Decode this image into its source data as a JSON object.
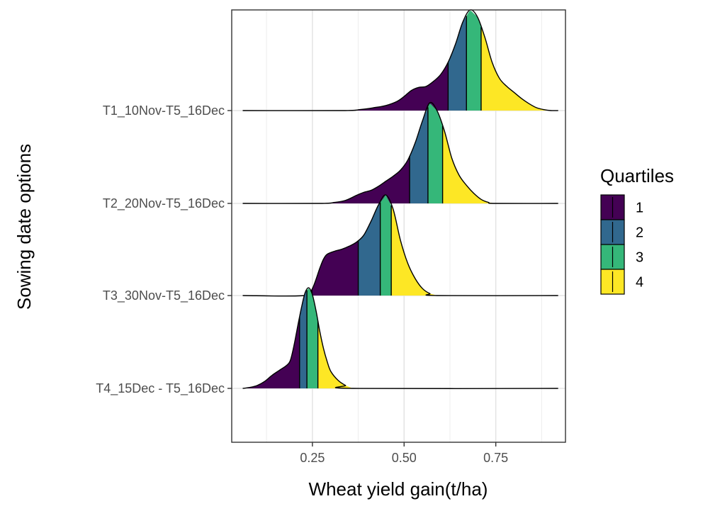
{
  "chart_data": {
    "type": "ridgeline",
    "title": "",
    "xlabel": "Wheat yield gain(t/ha)",
    "ylabel": "Sowing date options",
    "xlim": [
      0.03,
      0.94
    ],
    "x_ticks": [
      0.25,
      0.5,
      0.75
    ],
    "x_tick_labels": [
      "0.25",
      "0.50",
      "0.75"
    ],
    "grid": true,
    "legend": {
      "title": "Quartiles",
      "position": "right",
      "entries": [
        {
          "label": "1",
          "color": "#440154"
        },
        {
          "label": "2",
          "color": "#31688E"
        },
        {
          "label": "3",
          "color": "#35B779"
        },
        {
          "label": "4",
          "color": "#FDE725"
        }
      ]
    },
    "series": [
      {
        "name": "T1_10Nov-T5_16Dec",
        "range": [
          0.06,
          0.92
        ],
        "quartiles": [
          0.62,
          0.67,
          0.71
        ],
        "density": [
          [
            0.06,
            0
          ],
          [
            0.33,
            0
          ],
          [
            0.38,
            0.01
          ],
          [
            0.42,
            0.03
          ],
          [
            0.45,
            0.05
          ],
          [
            0.48,
            0.09
          ],
          [
            0.5,
            0.14
          ],
          [
            0.52,
            0.2
          ],
          [
            0.54,
            0.23
          ],
          [
            0.56,
            0.24
          ],
          [
            0.58,
            0.29
          ],
          [
            0.6,
            0.36
          ],
          [
            0.62,
            0.48
          ],
          [
            0.64,
            0.66
          ],
          [
            0.66,
            0.88
          ],
          [
            0.68,
            1.0
          ],
          [
            0.7,
            0.93
          ],
          [
            0.72,
            0.73
          ],
          [
            0.74,
            0.48
          ],
          [
            0.76,
            0.32
          ],
          [
            0.78,
            0.24
          ],
          [
            0.8,
            0.18
          ],
          [
            0.82,
            0.12
          ],
          [
            0.84,
            0.07
          ],
          [
            0.86,
            0.03
          ],
          [
            0.88,
            0.01
          ],
          [
            0.9,
            0
          ],
          [
            0.92,
            0
          ]
        ]
      },
      {
        "name": "T2_20Nov-T5_16Dec",
        "range": [
          0.06,
          0.92
        ],
        "quartiles": [
          0.515,
          0.565,
          0.605
        ],
        "density": [
          [
            0.06,
            0
          ],
          [
            0.27,
            0
          ],
          [
            0.31,
            0.01
          ],
          [
            0.34,
            0.03
          ],
          [
            0.37,
            0.08
          ],
          [
            0.39,
            0.11
          ],
          [
            0.41,
            0.13
          ],
          [
            0.43,
            0.17
          ],
          [
            0.45,
            0.22
          ],
          [
            0.47,
            0.27
          ],
          [
            0.49,
            0.33
          ],
          [
            0.51,
            0.43
          ],
          [
            0.53,
            0.6
          ],
          [
            0.55,
            0.82
          ],
          [
            0.57,
            1.0
          ],
          [
            0.59,
            0.92
          ],
          [
            0.61,
            0.72
          ],
          [
            0.63,
            0.45
          ],
          [
            0.65,
            0.28
          ],
          [
            0.67,
            0.18
          ],
          [
            0.69,
            0.1
          ],
          [
            0.71,
            0.04
          ],
          [
            0.73,
            0.01
          ],
          [
            0.75,
            0
          ],
          [
            0.92,
            0
          ]
        ]
      },
      {
        "name": "T3_30Nov-T5_16Dec",
        "range": [
          0.06,
          0.92
        ],
        "quartiles": [
          0.375,
          0.435,
          0.465
        ],
        "density": [
          [
            0.06,
            0
          ],
          [
            0.23,
            0
          ],
          [
            0.25,
            0.07
          ],
          [
            0.27,
            0.27
          ],
          [
            0.28,
            0.36
          ],
          [
            0.29,
            0.41
          ],
          [
            0.31,
            0.44
          ],
          [
            0.33,
            0.46
          ],
          [
            0.35,
            0.49
          ],
          [
            0.37,
            0.53
          ],
          [
            0.39,
            0.6
          ],
          [
            0.41,
            0.74
          ],
          [
            0.43,
            0.9
          ],
          [
            0.45,
            1.0
          ],
          [
            0.47,
            0.86
          ],
          [
            0.49,
            0.55
          ],
          [
            0.51,
            0.32
          ],
          [
            0.53,
            0.17
          ],
          [
            0.55,
            0.07
          ],
          [
            0.57,
            0.02
          ],
          [
            0.59,
            0
          ],
          [
            0.92,
            0
          ]
        ]
      },
      {
        "name": "T4_15Dec - T5_16Dec",
        "range": [
          0.06,
          0.92
        ],
        "quartiles": [
          0.215,
          0.235,
          0.265
        ],
        "density": [
          [
            0.06,
            0
          ],
          [
            0.08,
            0.01
          ],
          [
            0.1,
            0.03
          ],
          [
            0.12,
            0.07
          ],
          [
            0.14,
            0.13
          ],
          [
            0.16,
            0.18
          ],
          [
            0.18,
            0.23
          ],
          [
            0.19,
            0.28
          ],
          [
            0.2,
            0.43
          ],
          [
            0.21,
            0.62
          ],
          [
            0.22,
            0.8
          ],
          [
            0.23,
            0.95
          ],
          [
            0.24,
            1.0
          ],
          [
            0.25,
            0.93
          ],
          [
            0.26,
            0.77
          ],
          [
            0.27,
            0.57
          ],
          [
            0.28,
            0.4
          ],
          [
            0.29,
            0.27
          ],
          [
            0.3,
            0.17
          ],
          [
            0.32,
            0.08
          ],
          [
            0.34,
            0.03
          ],
          [
            0.36,
            0
          ],
          [
            0.92,
            0
          ]
        ]
      }
    ]
  }
}
